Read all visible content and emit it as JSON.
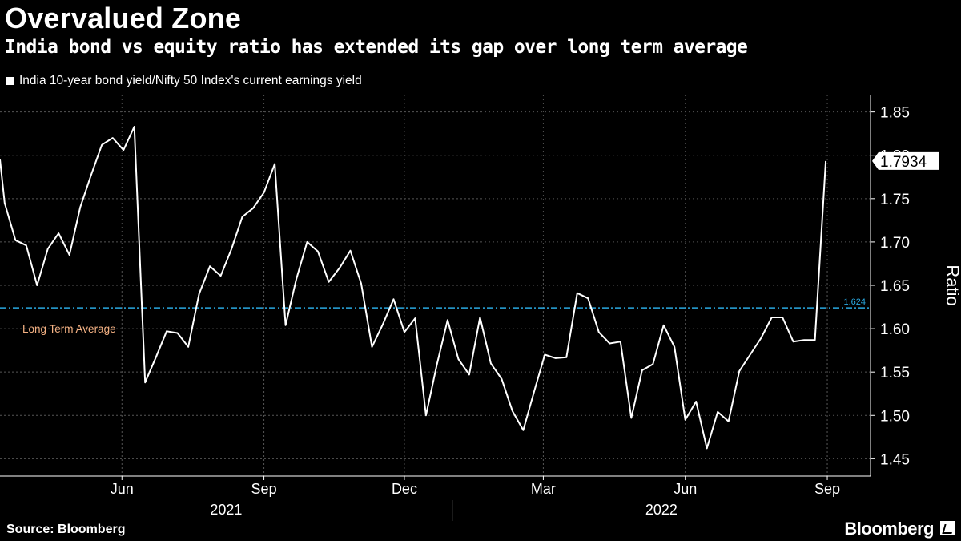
{
  "header": {
    "title": "Overvalued Zone",
    "subtitle": "India bond vs equity ratio has extended its gap over long term average"
  },
  "footer": {
    "source": "Source: Bloomberg",
    "brand": "Bloomberg"
  },
  "colors": {
    "background": "#000000",
    "series": "#ffffff",
    "average_line": "#29a8e0",
    "average_label": "#f4b183",
    "grid": "#555555"
  },
  "chart_data": {
    "type": "line",
    "title": "Overvalued Zone",
    "subtitle": "India bond vs equity ratio has extended its gap over long term average",
    "ylabel": "Ratio",
    "ylim": [
      1.43,
      1.87
    ],
    "yticks": [
      1.45,
      1.5,
      1.55,
      1.6,
      1.65,
      1.7,
      1.75,
      1.8,
      1.85
    ],
    "ytick_labels": [
      "1.45",
      "1.50",
      "1.55",
      "1.60",
      "1.65",
      "1.70",
      "1.75",
      "1.80",
      "1.85"
    ],
    "y_axis_position": "right",
    "grid": "vertical dashed at month ticks, horizontal dashed at y ticks",
    "xlim": [
      "2021-03-14",
      "2022-09-29"
    ],
    "xticks": [
      {
        "label": "Jun",
        "date": "2021-06-01"
      },
      {
        "label": "Sep",
        "date": "2021-09-01"
      },
      {
        "label": "Dec",
        "date": "2021-12-01"
      },
      {
        "label": "Mar",
        "date": "2022-03-01"
      },
      {
        "label": "Jun",
        "date": "2022-06-01"
      },
      {
        "label": "Sep",
        "date": "2022-09-01"
      }
    ],
    "year_labels": [
      "2021",
      "2022"
    ],
    "legend": {
      "position": "top-left",
      "entries": [
        "India 10-year bond yield/Nifty 50 Index's current earnings yield"
      ]
    },
    "series": [
      {
        "name": "India 10-year bond yield/Nifty 50 Index's current earnings yield",
        "color": "#ffffff",
        "points": [
          [
            "2021-03-14",
            1.795
          ],
          [
            "2021-03-17",
            1.745
          ],
          [
            "2021-03-24",
            1.702
          ],
          [
            "2021-03-31",
            1.696
          ],
          [
            "2021-04-07",
            1.65
          ],
          [
            "2021-04-14",
            1.692
          ],
          [
            "2021-04-21",
            1.71
          ],
          [
            "2021-04-28",
            1.685
          ],
          [
            "2021-05-05",
            1.74
          ],
          [
            "2021-05-12",
            1.777
          ],
          [
            "2021-05-19",
            1.812
          ],
          [
            "2021-05-26",
            1.82
          ],
          [
            "2021-06-02",
            1.806
          ],
          [
            "2021-06-09",
            1.833
          ],
          [
            "2021-06-16",
            1.538
          ],
          [
            "2021-06-23",
            1.567
          ],
          [
            "2021-06-30",
            1.597
          ],
          [
            "2021-07-07",
            1.595
          ],
          [
            "2021-07-14",
            1.579
          ],
          [
            "2021-07-21",
            1.64
          ],
          [
            "2021-07-28",
            1.672
          ],
          [
            "2021-08-04",
            1.661
          ],
          [
            "2021-08-11",
            1.692
          ],
          [
            "2021-08-18",
            1.729
          ],
          [
            "2021-08-25",
            1.739
          ],
          [
            "2021-09-01",
            1.757
          ],
          [
            "2021-09-08",
            1.79
          ],
          [
            "2021-09-15",
            1.604
          ],
          [
            "2021-09-22",
            1.657
          ],
          [
            "2021-09-29",
            1.7
          ],
          [
            "2021-10-06",
            1.689
          ],
          [
            "2021-10-13",
            1.654
          ],
          [
            "2021-10-20",
            1.67
          ],
          [
            "2021-10-27",
            1.69
          ],
          [
            "2021-11-03",
            1.652
          ],
          [
            "2021-11-10",
            1.579
          ],
          [
            "2021-11-17",
            1.605
          ],
          [
            "2021-11-24",
            1.634
          ],
          [
            "2021-12-01",
            1.596
          ],
          [
            "2021-12-08",
            1.612
          ],
          [
            "2021-12-15",
            1.5
          ],
          [
            "2021-12-22",
            1.558
          ],
          [
            "2021-12-29",
            1.61
          ],
          [
            "2022-01-05",
            1.565
          ],
          [
            "2022-01-12",
            1.547
          ],
          [
            "2022-01-19",
            1.613
          ],
          [
            "2022-01-26",
            1.56
          ],
          [
            "2022-02-02",
            1.542
          ],
          [
            "2022-02-09",
            1.505
          ],
          [
            "2022-02-16",
            1.483
          ],
          [
            "2022-02-23",
            1.527
          ],
          [
            "2022-03-02",
            1.57
          ],
          [
            "2022-03-09",
            1.566
          ],
          [
            "2022-03-16",
            1.567
          ],
          [
            "2022-03-23",
            1.641
          ],
          [
            "2022-03-30",
            1.635
          ],
          [
            "2022-04-06",
            1.596
          ],
          [
            "2022-04-13",
            1.583
          ],
          [
            "2022-04-20",
            1.585
          ],
          [
            "2022-04-27",
            1.497
          ],
          [
            "2022-05-04",
            1.552
          ],
          [
            "2022-05-11",
            1.559
          ],
          [
            "2022-05-18",
            1.604
          ],
          [
            "2022-05-25",
            1.579
          ],
          [
            "2022-06-01",
            1.495
          ],
          [
            "2022-06-08",
            1.516
          ],
          [
            "2022-06-15",
            1.462
          ],
          [
            "2022-06-22",
            1.504
          ],
          [
            "2022-06-29",
            1.493
          ],
          [
            "2022-07-06",
            1.551
          ],
          [
            "2022-07-13",
            1.57
          ],
          [
            "2022-07-20",
            1.589
          ],
          [
            "2022-07-27",
            1.613
          ],
          [
            "2022-08-03",
            1.613
          ],
          [
            "2022-08-10",
            1.585
          ],
          [
            "2022-08-17",
            1.587
          ],
          [
            "2022-08-24",
            1.587
          ],
          [
            "2022-08-31",
            1.7934
          ]
        ]
      }
    ],
    "reference_line": {
      "value": 1.624,
      "label": "Long Term Average",
      "value_label": "1.624",
      "style": "dash-dot"
    },
    "last_value_label": "1.7934",
    "annotations": [
      "Long Term Average",
      "1.624"
    ]
  }
}
